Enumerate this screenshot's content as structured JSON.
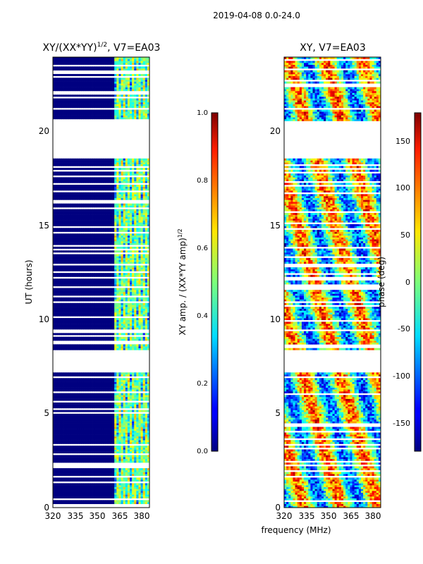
{
  "suptitle": "2019-04-08 0.0-24.0",
  "shared_xlabel": "frequency (MHz)",
  "chart_data": [
    {
      "type": "heatmap",
      "name": "amplitude-ratio",
      "title_main": "XY/(XX*YY)",
      "title_exp": "1/2",
      "title_suffix": ", V7=EA03",
      "ylabel": "UT (hours)",
      "xlim": [
        320,
        385
      ],
      "ylim": [
        0,
        24
      ],
      "xticks": [
        320,
        335,
        350,
        365,
        380
      ],
      "yticks": [
        0,
        5,
        10,
        15,
        20
      ],
      "active_channels_mhz": [
        [
          361,
          385
        ]
      ],
      "gaps_hours": [
        [
          7.2,
          8.4
        ],
        [
          18.6,
          20.6
        ]
      ],
      "colorbar": {
        "label_main": "XY amp. / (XX*YY amp)",
        "label_exp": "1/2",
        "range": [
          0.0,
          1.0
        ],
        "ticks": [
          "0.0",
          "0.2",
          "0.4",
          "0.6",
          "0.8",
          "1.0"
        ]
      }
    },
    {
      "type": "heatmap",
      "name": "phase",
      "title": "XY, V7=EA03",
      "xlim": [
        320,
        385
      ],
      "ylim": [
        0,
        24
      ],
      "xticks": [
        320,
        335,
        350,
        365,
        380
      ],
      "yticks": [
        0,
        5,
        10,
        15,
        20
      ],
      "gaps_hours": [
        [
          7.2,
          8.4
        ],
        [
          18.6,
          20.6
        ]
      ],
      "colorbar": {
        "label": "phase (deg)",
        "range": [
          -180,
          180
        ],
        "ticks": [
          "-150",
          "-100",
          "-50",
          "0",
          "50",
          "100",
          "150"
        ]
      }
    }
  ]
}
